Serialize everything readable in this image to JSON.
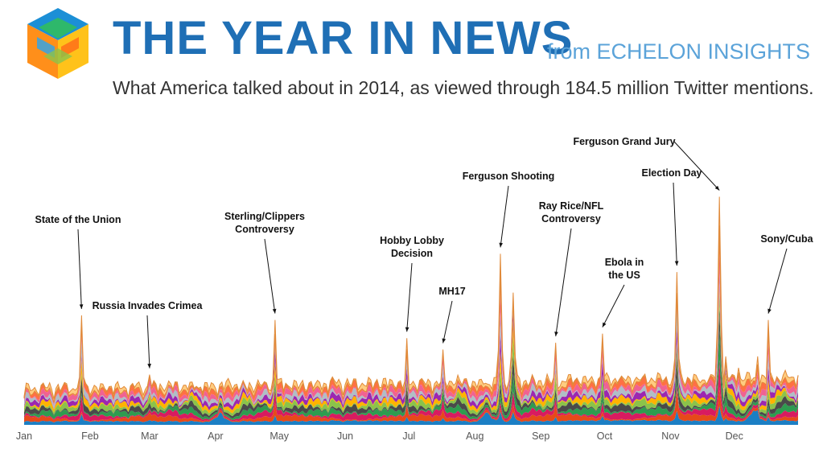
{
  "header": {
    "title": "THE YEAR IN NEWS",
    "from_label": "from ECHELON INSIGHTS",
    "subtitle": "What America talked about in 2014, as viewed through 184.5 million Twitter mentions.",
    "logo_icon": "hexagon-cube-logo-icon"
  },
  "colors": {
    "title": "#1f6fb5",
    "from": "#5ba3d9",
    "layers": [
      "#1c7fc4",
      "#e64a19",
      "#d81b60",
      "#2e9c4f",
      "#4a4a4a",
      "#8bc34a",
      "#ffb300",
      "#9c27b0",
      "#b0bec5",
      "#f06292",
      "#ff7043",
      "#ffcc80"
    ]
  },
  "chart_data": {
    "type": "area",
    "xlabel": "",
    "ylabel": "",
    "grid": false,
    "x_ticks": [
      "Jan",
      "Feb",
      "Mar",
      "Apr",
      "May",
      "Jun",
      "Jul",
      "Aug",
      "Sep",
      "Oct",
      "Nov",
      "Dec"
    ],
    "annotations": [
      {
        "label": "State of the Union",
        "date": "2014-01-28",
        "peak": 0.48
      },
      {
        "label": "Russia Invades Crimea",
        "date": "2014-03-01",
        "peak": 0.22
      },
      {
        "label": "Sterling/Clippers Controversy",
        "date": "2014-04-29",
        "peak": 0.46
      },
      {
        "label": "Hobby Lobby Decision",
        "date": "2014-06-30",
        "peak": 0.38
      },
      {
        "label": "MH17",
        "date": "2014-07-17",
        "peak": 0.33
      },
      {
        "label": "Ferguson Shooting",
        "date": "2014-08-13",
        "peak": 0.75
      },
      {
        "label": "Ray Rice/NFL Controversy",
        "date": "2014-09-08",
        "peak": 0.36
      },
      {
        "label": "Ebola in the US",
        "date": "2014-09-30",
        "peak": 0.4
      },
      {
        "label": "Election Day",
        "date": "2014-11-04",
        "peak": 0.67
      },
      {
        "label": "Ferguson Grand Jury",
        "date": "2014-11-24",
        "peak": 1.0
      },
      {
        "label": "Sony/Cuba",
        "date": "2014-12-17",
        "peak": 0.46
      }
    ]
  }
}
